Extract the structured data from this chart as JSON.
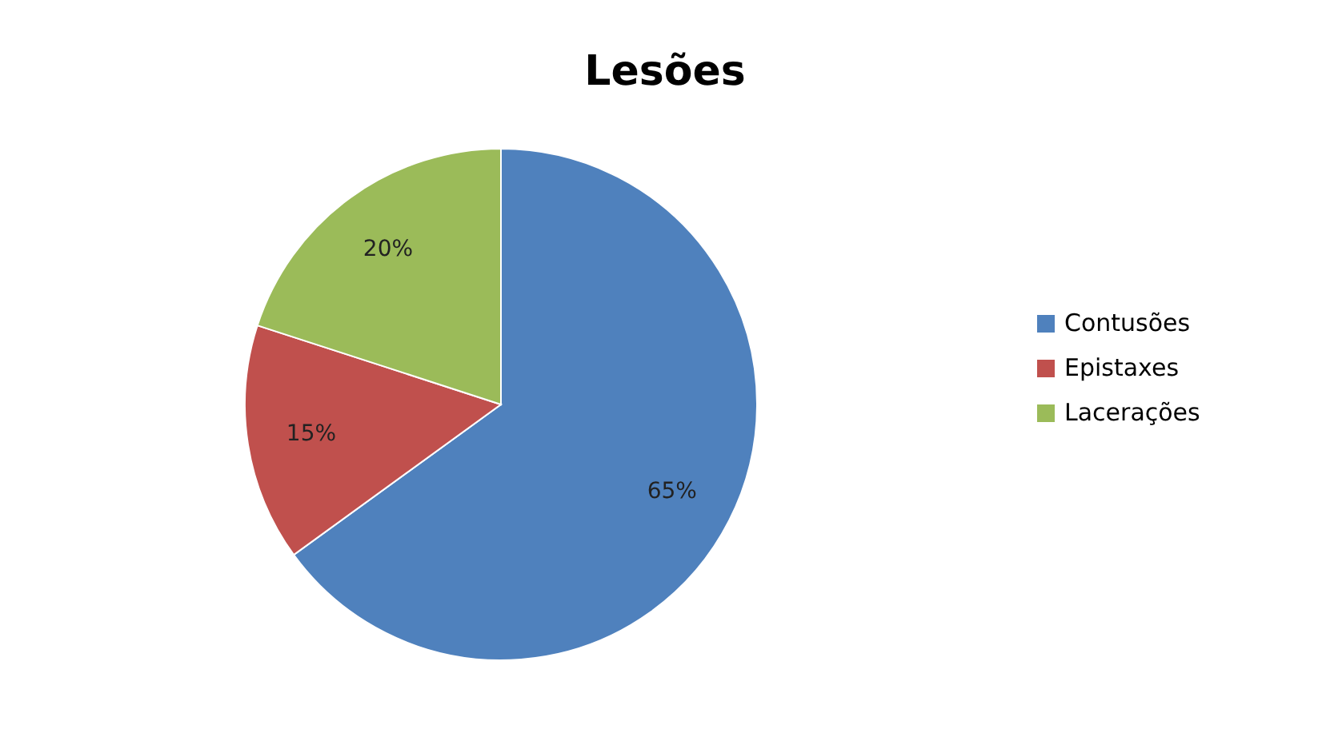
{
  "chart_data": {
    "type": "pie",
    "title": "Lesões",
    "categories": [
      "Contusões",
      "Epistaxes",
      "Lacerações"
    ],
    "values": [
      65,
      15,
      20
    ],
    "colors": [
      "#4f81bd",
      "#c0504d",
      "#9bbb59"
    ],
    "value_labels": [
      "65%",
      "15%",
      "20%"
    ],
    "legend": "right"
  }
}
